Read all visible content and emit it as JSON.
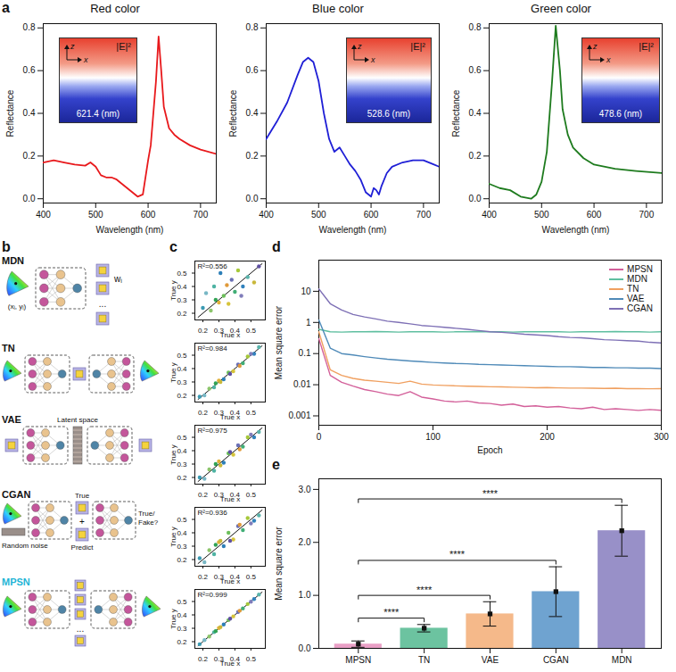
{
  "chart_data": [
    {
      "type": "line",
      "panel": "a",
      "title": "Red color",
      "x": [
        400,
        420,
        440,
        460,
        480,
        490,
        500,
        510,
        520,
        530,
        540,
        550,
        560,
        570,
        580,
        590,
        600,
        605,
        610,
        615,
        620,
        625,
        630,
        640,
        650,
        660,
        680,
        700,
        730
      ],
      "values": [
        0.17,
        0.18,
        0.17,
        0.16,
        0.155,
        0.17,
        0.15,
        0.11,
        0.1,
        0.1,
        0.09,
        0.07,
        0.05,
        0.03,
        0.01,
        0.02,
        0.18,
        0.25,
        0.4,
        0.55,
        0.76,
        0.6,
        0.43,
        0.33,
        0.3,
        0.28,
        0.25,
        0.23,
        0.21
      ],
      "color": "#e8191c",
      "xlabel": "Wavelength (nm)",
      "ylabel": "Reflectance",
      "xlim": [
        400,
        730
      ],
      "xticks": [
        400,
        500,
        600,
        700
      ],
      "ylim": [
        -0.02,
        0.82
      ],
      "yticks": [
        {
          "value": 0,
          "label": "0.0"
        },
        0.2,
        0.4,
        0.6,
        0.8
      ],
      "inset": {
        "title": "|E|²",
        "axes": [
          "z",
          "x"
        ],
        "label": "621.4 (nm)"
      }
    },
    {
      "type": "line",
      "title": "Blue color",
      "x": [
        400,
        420,
        440,
        460,
        470,
        480,
        490,
        500,
        510,
        520,
        530,
        540,
        550,
        560,
        570,
        580,
        590,
        600,
        605,
        610,
        615,
        620,
        630,
        640,
        660,
        680,
        700,
        720,
        730
      ],
      "values": [
        0.28,
        0.36,
        0.45,
        0.58,
        0.64,
        0.66,
        0.64,
        0.55,
        0.4,
        0.28,
        0.22,
        0.24,
        0.2,
        0.16,
        0.13,
        0.09,
        0.03,
        0.01,
        0.05,
        0.04,
        0.02,
        0.06,
        0.12,
        0.15,
        0.17,
        0.18,
        0.18,
        0.16,
        0.15
      ],
      "color": "#1f1fd6",
      "xlabel": "Wavelength (nm)",
      "ylabel": "Reflectance",
      "xlim": [
        400,
        730
      ],
      "xticks": [
        400,
        500,
        600,
        700
      ],
      "ylim": [
        -0.02,
        0.82
      ],
      "yticks": [
        {
          "value": 0,
          "label": "0.0"
        },
        0.2,
        0.4,
        0.6,
        0.8
      ],
      "inset": {
        "title": "|E|²",
        "axes": [
          "z",
          "x"
        ],
        "label": "528.6 (nm)"
      }
    },
    {
      "type": "line",
      "title": "Green color",
      "x": [
        400,
        420,
        440,
        460,
        480,
        490,
        500,
        510,
        520,
        527,
        535,
        540,
        550,
        560,
        580,
        600,
        640,
        680,
        730
      ],
      "values": [
        0.07,
        0.05,
        0.04,
        0.01,
        0.0,
        0.02,
        0.08,
        0.22,
        0.55,
        0.81,
        0.6,
        0.42,
        0.3,
        0.24,
        0.19,
        0.16,
        0.14,
        0.13,
        0.12
      ],
      "color": "#1e7b1e",
      "xlabel": "Wavelength (nm)",
      "ylabel": "Reflectance",
      "xlim": [
        400,
        730
      ],
      "xticks": [
        400,
        500,
        600,
        700
      ],
      "ylim": [
        -0.02,
        0.82
      ],
      "yticks": [
        {
          "value": 0,
          "label": "0.0"
        },
        0.2,
        0.4,
        0.6,
        0.8
      ],
      "inset": {
        "title": "|E|²",
        "axes": [
          "z",
          "x"
        ],
        "label": "478.6 (nm)"
      }
    },
    {
      "type": "diagram",
      "panel": "b",
      "rows": [
        {
          "name": "MDN",
          "input_label": "(xᵢ, yᵢ)",
          "output_label": "wᵢ",
          "ellipsis": "..."
        },
        {
          "name": "TN"
        },
        {
          "name": "VAE",
          "latent_label": "Latent space"
        },
        {
          "name": "CGAN",
          "noise_label": "Random noise",
          "true_label": "True",
          "plus": "+",
          "predict_label": "Predict",
          "output_label": "True/ Fake?"
        },
        {
          "name": "MPSN",
          "color": "#1fb5d6",
          "ellipsis": "..."
        }
      ]
    },
    {
      "type": "scatter",
      "panel": "c",
      "annotation": "R²=0.556",
      "x": [
        0.2,
        0.22,
        0.25,
        0.27,
        0.3,
        0.31,
        0.33,
        0.36,
        0.38,
        0.4,
        0.42,
        0.45,
        0.48,
        0.52,
        0.55,
        0.28,
        0.35,
        0.44
      ],
      "y": [
        0.24,
        0.35,
        0.22,
        0.4,
        0.28,
        0.5,
        0.33,
        0.27,
        0.45,
        0.36,
        0.52,
        0.4,
        0.47,
        0.43,
        0.55,
        0.3,
        0.41,
        0.33
      ],
      "colors": [
        "#3b9ab2",
        "#78b7c5",
        "#8cc56b",
        "#4eb3a3",
        "#e0b13a",
        "#2c7fb8",
        "#6cbf5a",
        "#d6c43b",
        "#6a6fb5",
        "#41ae76",
        "#a6c83a",
        "#3182bd",
        "#5ab4ac",
        "#c9b83a",
        "#5e4fa2",
        "#31a354",
        "#e09a3a",
        "#807dba"
      ],
      "fit": {
        "x": [
          0.17,
          0.57
        ],
        "y": [
          0.17,
          0.57
        ]
      },
      "xlabel": "True x",
      "ylabel": "True y",
      "xlim": [
        0.15,
        0.59
      ],
      "xticks": [
        0.2,
        0.3,
        0.4,
        0.5
      ],
      "ylim": [
        0.15,
        0.59
      ],
      "yticks": [
        0.2,
        0.3,
        0.4,
        0.5
      ]
    },
    {
      "type": "scatter",
      "annotation": "R²=0.984",
      "x": [
        0.18,
        0.21,
        0.24,
        0.27,
        0.3,
        0.33,
        0.36,
        0.39,
        0.42,
        0.45,
        0.48,
        0.52,
        0.55,
        0.31,
        0.37,
        0.28,
        0.43,
        0.5
      ],
      "y": [
        0.19,
        0.2,
        0.25,
        0.26,
        0.31,
        0.32,
        0.37,
        0.38,
        0.43,
        0.44,
        0.49,
        0.51,
        0.56,
        0.3,
        0.36,
        0.29,
        0.42,
        0.51
      ],
      "colors": [
        "#3b9ab2",
        "#78b7c5",
        "#8cc56b",
        "#4eb3a3",
        "#e0b13a",
        "#2c7fb8",
        "#6cbf5a",
        "#d6c43b",
        "#6a6fb5",
        "#41ae76",
        "#a6c83a",
        "#3182bd",
        "#5ab4ac",
        "#c9b83a",
        "#5e4fa2",
        "#31a354",
        "#e09a3a",
        "#807dba"
      ],
      "fit": {
        "x": [
          0.17,
          0.57
        ],
        "y": [
          0.17,
          0.57
        ]
      },
      "xlabel": "True x",
      "ylabel": "True y",
      "xlim": [
        0.15,
        0.59
      ],
      "xticks": [
        0.2,
        0.3,
        0.4,
        0.5
      ],
      "ylim": [
        0.15,
        0.59
      ],
      "yticks": [
        0.2,
        0.3,
        0.4,
        0.5
      ]
    },
    {
      "type": "scatter",
      "annotation": "R²=0.975",
      "x": [
        0.18,
        0.21,
        0.24,
        0.27,
        0.3,
        0.33,
        0.36,
        0.39,
        0.42,
        0.45,
        0.48,
        0.52,
        0.55,
        0.31,
        0.37,
        0.28,
        0.43,
        0.5
      ],
      "y": [
        0.2,
        0.19,
        0.26,
        0.25,
        0.32,
        0.31,
        0.38,
        0.37,
        0.44,
        0.43,
        0.5,
        0.5,
        0.54,
        0.29,
        0.39,
        0.3,
        0.41,
        0.52
      ],
      "colors": [
        "#3b9ab2",
        "#78b7c5",
        "#8cc56b",
        "#4eb3a3",
        "#e0b13a",
        "#2c7fb8",
        "#6cbf5a",
        "#d6c43b",
        "#6a6fb5",
        "#41ae76",
        "#a6c83a",
        "#3182bd",
        "#5ab4ac",
        "#c9b83a",
        "#5e4fa2",
        "#31a354",
        "#e09a3a",
        "#807dba"
      ],
      "fit": {
        "x": [
          0.17,
          0.57
        ],
        "y": [
          0.17,
          0.57
        ]
      },
      "xlabel": "True x",
      "ylabel": "True y",
      "xlim": [
        0.15,
        0.59
      ],
      "xticks": [
        0.2,
        0.3,
        0.4,
        0.5
      ],
      "ylim": [
        0.15,
        0.59
      ],
      "yticks": [
        0.2,
        0.3,
        0.4,
        0.5
      ]
    },
    {
      "type": "scatter",
      "annotation": "R²=0.936",
      "x": [
        0.18,
        0.21,
        0.24,
        0.27,
        0.3,
        0.33,
        0.36,
        0.39,
        0.42,
        0.45,
        0.48,
        0.52,
        0.55,
        0.31,
        0.37,
        0.28,
        0.43,
        0.5
      ],
      "y": [
        0.21,
        0.18,
        0.27,
        0.24,
        0.33,
        0.3,
        0.4,
        0.35,
        0.45,
        0.42,
        0.51,
        0.49,
        0.53,
        0.34,
        0.34,
        0.31,
        0.46,
        0.47
      ],
      "colors": [
        "#3b9ab2",
        "#78b7c5",
        "#8cc56b",
        "#4eb3a3",
        "#e0b13a",
        "#2c7fb8",
        "#6cbf5a",
        "#d6c43b",
        "#6a6fb5",
        "#41ae76",
        "#a6c83a",
        "#3182bd",
        "#5ab4ac",
        "#c9b83a",
        "#5e4fa2",
        "#31a354",
        "#e09a3a",
        "#807dba"
      ],
      "fit": {
        "x": [
          0.17,
          0.57
        ],
        "y": [
          0.17,
          0.57
        ]
      },
      "xlabel": "True x",
      "ylabel": "True y",
      "xlim": [
        0.15,
        0.59
      ],
      "xticks": [
        0.2,
        0.3,
        0.4,
        0.5
      ],
      "ylim": [
        0.15,
        0.59
      ],
      "yticks": [
        0.2,
        0.3,
        0.4,
        0.5
      ]
    },
    {
      "type": "scatter",
      "annotation": "R²=0.999",
      "x": [
        0.18,
        0.21,
        0.24,
        0.27,
        0.3,
        0.33,
        0.36,
        0.39,
        0.42,
        0.45,
        0.48,
        0.52,
        0.55,
        0.31,
        0.37,
        0.28,
        0.43,
        0.5
      ],
      "y": [
        0.181,
        0.212,
        0.238,
        0.271,
        0.302,
        0.328,
        0.361,
        0.389,
        0.422,
        0.448,
        0.481,
        0.518,
        0.552,
        0.309,
        0.372,
        0.279,
        0.431,
        0.498
      ],
      "colors": [
        "#3b9ab2",
        "#78b7c5",
        "#8cc56b",
        "#4eb3a3",
        "#e0b13a",
        "#2c7fb8",
        "#6cbf5a",
        "#d6c43b",
        "#6a6fb5",
        "#41ae76",
        "#a6c83a",
        "#3182bd",
        "#5ab4ac",
        "#c9b83a",
        "#5e4fa2",
        "#31a354",
        "#e09a3a",
        "#807dba"
      ],
      "fit": {
        "x": [
          0.17,
          0.57
        ],
        "y": [
          0.17,
          0.57
        ]
      },
      "xlabel": "True x",
      "ylabel": "True y",
      "xlim": [
        0.15,
        0.59
      ],
      "xticks": [
        0.2,
        0.3,
        0.4,
        0.5
      ],
      "ylim": [
        0.15,
        0.59
      ],
      "yticks": [
        0.2,
        0.3,
        0.4,
        0.5
      ]
    },
    {
      "type": "line",
      "panel": "d",
      "x": [
        0,
        10,
        20,
        30,
        40,
        50,
        60,
        70,
        80,
        90,
        100,
        110,
        120,
        130,
        140,
        150,
        160,
        170,
        180,
        190,
        200,
        210,
        220,
        230,
        240,
        250,
        260,
        270,
        280,
        290,
        300
      ],
      "series": [
        {
          "name": "MPSN",
          "color": "#d3609a",
          "values": [
            0.3,
            0.02,
            0.012,
            0.009,
            0.007,
            0.006,
            0.005,
            0.0045,
            0.006,
            0.004,
            0.0035,
            0.003,
            0.0028,
            0.003,
            0.0026,
            0.0025,
            0.0022,
            0.0024,
            0.002,
            0.0021,
            0.0019,
            0.002,
            0.0018,
            0.0017,
            0.0019,
            0.0016,
            0.0017,
            0.0016,
            0.0015,
            0.0016,
            0.0015
          ]
        },
        {
          "name": "MDN",
          "color": "#5fbfa0",
          "values": [
            0.6,
            0.5,
            0.49,
            0.5,
            0.5,
            0.51,
            0.5,
            0.49,
            0.5,
            0.5,
            0.5,
            0.49,
            0.5,
            0.5,
            0.51,
            0.5,
            0.5,
            0.49,
            0.5,
            0.5,
            0.5,
            0.5,
            0.49,
            0.5,
            0.5,
            0.5,
            0.51,
            0.5,
            0.5,
            0.49,
            0.5
          ]
        },
        {
          "name": "TN",
          "color": "#f0a060",
          "values": [
            0.5,
            0.03,
            0.02,
            0.016,
            0.014,
            0.013,
            0.012,
            0.011,
            0.013,
            0.0105,
            0.0098,
            0.0095,
            0.0092,
            0.009,
            0.0088,
            0.0086,
            0.0085,
            0.0083,
            0.0082,
            0.008,
            0.0081,
            0.0079,
            0.0078,
            0.0078,
            0.0077,
            0.0076,
            0.0077,
            0.0075,
            0.0075,
            0.0074,
            0.0075
          ]
        },
        {
          "name": "VAE",
          "color": "#4f8ab8",
          "values": [
            1.2,
            0.15,
            0.1,
            0.09,
            0.08,
            0.072,
            0.066,
            0.062,
            0.058,
            0.055,
            0.052,
            0.05,
            0.048,
            0.047,
            0.045,
            0.044,
            0.043,
            0.042,
            0.041,
            0.04,
            0.039,
            0.038,
            0.038,
            0.037,
            0.036,
            0.036,
            0.035,
            0.035,
            0.034,
            0.034,
            0.033
          ]
        },
        {
          "name": "CGAN",
          "color": "#7e70b5",
          "values": [
            12,
            4,
            2.5,
            1.8,
            1.5,
            1.3,
            1.1,
            1,
            0.9,
            0.8,
            0.75,
            0.7,
            0.65,
            0.6,
            0.55,
            0.5,
            0.48,
            0.45,
            0.42,
            0.4,
            0.38,
            0.35,
            0.33,
            0.32,
            0.3,
            0.28,
            0.27,
            0.26,
            0.25,
            0.23,
            0.22
          ]
        }
      ],
      "xlabel": "Epoch",
      "ylabel": "Mean square error",
      "xlim": [
        0,
        300
      ],
      "xticks": [
        0,
        100,
        200,
        300
      ],
      "ylim": [
        0.0005,
        100
      ],
      "yticks": [
        0.001,
        0.01,
        0.1,
        1,
        10
      ],
      "log": "y",
      "legend": "top-right"
    },
    {
      "type": "bar",
      "panel": "e",
      "categories": [
        "MPSN",
        "TN",
        "VAE",
        "CGAN",
        "MDN"
      ],
      "values": [
        0.08,
        0.38,
        0.65,
        1.07,
        2.22
      ],
      "errors": [
        0.06,
        0.07,
        0.23,
        0.47,
        0.48
      ],
      "colors": [
        "#e9a0c6",
        "#6cc3a0",
        "#f5b98a",
        "#6fa3d0",
        "#9890c8"
      ],
      "ylabel": "Mean square error",
      "ylim": [
        0,
        3.2
      ],
      "yticks": [
        {
          "value": 0,
          "label": "0.0"
        },
        {
          "value": 1,
          "label": "1.0"
        },
        {
          "value": 2,
          "label": "2.0"
        },
        {
          "value": 3,
          "label": "3.0"
        }
      ],
      "significance": [
        {
          "from": "MPSN",
          "to": "TN",
          "label": "****"
        },
        {
          "from": "MPSN",
          "to": "VAE",
          "label": "****"
        },
        {
          "from": "MPSN",
          "to": "CGAN",
          "label": "****"
        },
        {
          "from": "MPSN",
          "to": "MDN",
          "label": "****"
        }
      ]
    }
  ]
}
